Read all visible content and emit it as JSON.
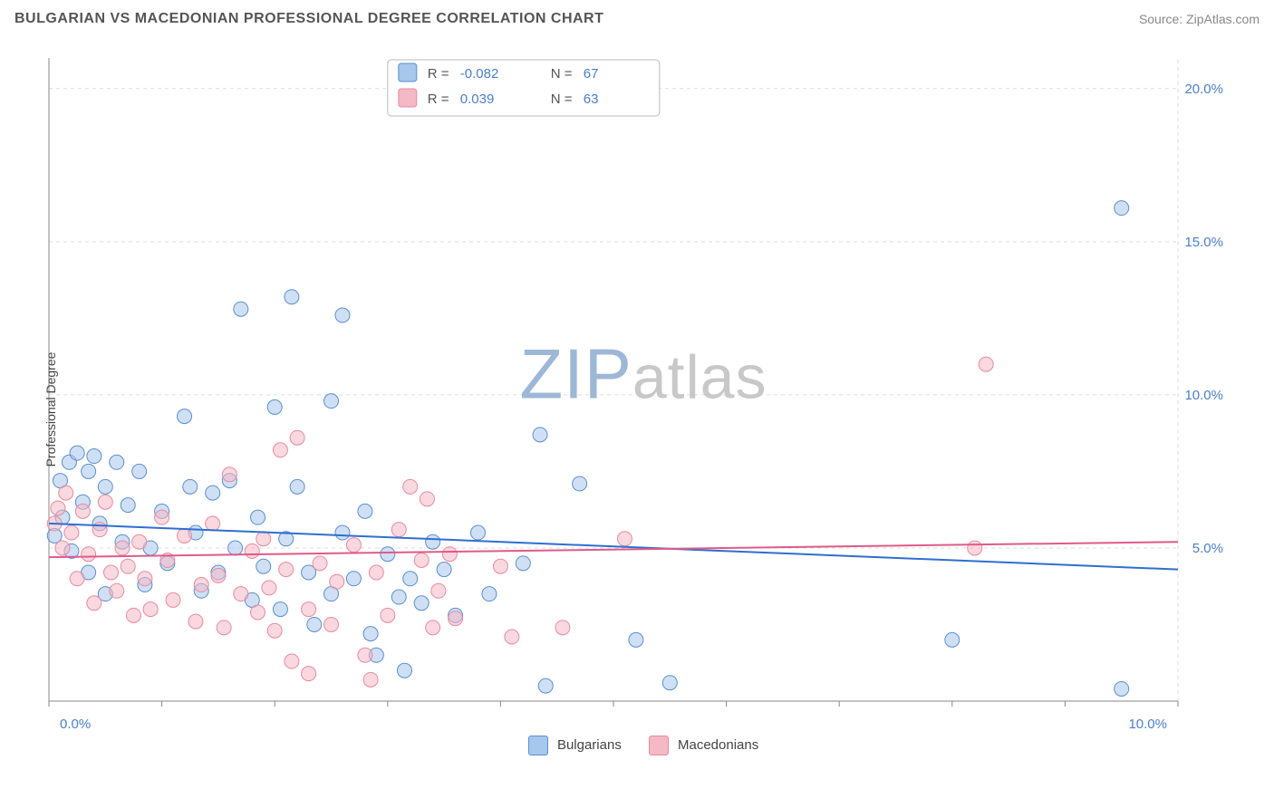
{
  "title": "BULGARIAN VS MACEDONIAN PROFESSIONAL DEGREE CORRELATION CHART",
  "source": "Source: ZipAtlas.com",
  "watermark": {
    "zip": "ZIP",
    "atlas": "atlas"
  },
  "ylabel": "Professional Degree",
  "xlim": [
    0,
    10
  ],
  "ylim": [
    0,
    21
  ],
  "x_ticks": [
    0,
    1,
    2,
    3,
    4,
    5,
    6,
    7,
    8,
    9,
    10
  ],
  "x_tick_labels": {
    "0": "0.0%",
    "10": "10.0%"
  },
  "y_gridlines": [
    5,
    10,
    15,
    20
  ],
  "y_tick_labels": {
    "5": "5.0%",
    "10": "10.0%",
    "15": "15.0%",
    "20": "20.0%"
  },
  "colors": {
    "series1_fill": "#a7c7ec",
    "series1_stroke": "#5a8fd0",
    "series1_line": "#2e6fd0",
    "series2_fill": "#f5b8c5",
    "series2_stroke": "#e88aa0",
    "series2_line": "#e05a8a",
    "grid": "#dddddd",
    "axis": "#888888",
    "tick_text": "#4a7fc8",
    "label_text": "#444444",
    "legend_border": "#bbbbbb",
    "r_label": "#555555"
  },
  "point_radius": 8,
  "point_opacity": 0.55,
  "line_width": 2,
  "legend_top": {
    "items": [
      {
        "swatch": 0,
        "r_label": "R =",
        "r_value": "-0.082",
        "n_label": "N =",
        "n_value": "67"
      },
      {
        "swatch": 1,
        "r_label": "R =",
        "r_value": "0.039",
        "n_label": "N =",
        "n_value": "63"
      }
    ]
  },
  "legend_bottom": [
    {
      "swatch": 0,
      "label": "Bulgarians"
    },
    {
      "swatch": 1,
      "label": "Macedonians"
    }
  ],
  "series": [
    {
      "name": "Bulgarians",
      "color_idx": 0,
      "trend": {
        "y_at_x0": 5.8,
        "y_at_xmax": 4.3
      },
      "points": [
        [
          0.05,
          5.4
        ],
        [
          0.1,
          7.2
        ],
        [
          0.12,
          6.0
        ],
        [
          0.18,
          7.8
        ],
        [
          0.2,
          4.9
        ],
        [
          0.25,
          8.1
        ],
        [
          0.3,
          6.5
        ],
        [
          0.35,
          7.5
        ],
        [
          0.35,
          4.2
        ],
        [
          0.4,
          8.0
        ],
        [
          0.45,
          5.8
        ],
        [
          0.5,
          7.0
        ],
        [
          0.5,
          3.5
        ],
        [
          0.6,
          7.8
        ],
        [
          0.65,
          5.2
        ],
        [
          0.7,
          6.4
        ],
        [
          0.8,
          7.5
        ],
        [
          0.85,
          3.8
        ],
        [
          0.9,
          5.0
        ],
        [
          1.0,
          6.2
        ],
        [
          1.05,
          4.5
        ],
        [
          1.2,
          9.3
        ],
        [
          1.25,
          7.0
        ],
        [
          1.3,
          5.5
        ],
        [
          1.35,
          3.6
        ],
        [
          1.45,
          6.8
        ],
        [
          1.5,
          4.2
        ],
        [
          1.6,
          7.2
        ],
        [
          1.65,
          5.0
        ],
        [
          1.7,
          12.8
        ],
        [
          1.8,
          3.3
        ],
        [
          1.85,
          6.0
        ],
        [
          1.9,
          4.4
        ],
        [
          2.0,
          9.6
        ],
        [
          2.05,
          3.0
        ],
        [
          2.1,
          5.3
        ],
        [
          2.15,
          13.2
        ],
        [
          2.2,
          7.0
        ],
        [
          2.3,
          4.2
        ],
        [
          2.35,
          2.5
        ],
        [
          2.5,
          9.8
        ],
        [
          2.5,
          3.5
        ],
        [
          2.6,
          5.5
        ],
        [
          2.6,
          12.6
        ],
        [
          2.7,
          4.0
        ],
        [
          2.8,
          6.2
        ],
        [
          2.85,
          2.2
        ],
        [
          2.9,
          1.5
        ],
        [
          3.0,
          4.8
        ],
        [
          3.1,
          3.4
        ],
        [
          3.15,
          1.0
        ],
        [
          3.2,
          4.0
        ],
        [
          3.3,
          3.2
        ],
        [
          3.4,
          5.2
        ],
        [
          3.5,
          4.3
        ],
        [
          3.6,
          2.8
        ],
        [
          3.8,
          5.5
        ],
        [
          3.9,
          3.5
        ],
        [
          4.2,
          4.5
        ],
        [
          4.35,
          8.7
        ],
        [
          4.4,
          0.5
        ],
        [
          4.7,
          7.1
        ],
        [
          5.2,
          2.0
        ],
        [
          5.5,
          0.6
        ],
        [
          8.0,
          2.0
        ],
        [
          9.5,
          16.1
        ],
        [
          9.5,
          0.4
        ]
      ]
    },
    {
      "name": "Macedonians",
      "color_idx": 1,
      "trend": {
        "y_at_x0": 4.7,
        "y_at_xmax": 5.2
      },
      "points": [
        [
          0.05,
          5.8
        ],
        [
          0.08,
          6.3
        ],
        [
          0.12,
          5.0
        ],
        [
          0.15,
          6.8
        ],
        [
          0.2,
          5.5
        ],
        [
          0.25,
          4.0
        ],
        [
          0.3,
          6.2
        ],
        [
          0.35,
          4.8
        ],
        [
          0.4,
          3.2
        ],
        [
          0.45,
          5.6
        ],
        [
          0.5,
          6.5
        ],
        [
          0.55,
          4.2
        ],
        [
          0.6,
          3.6
        ],
        [
          0.65,
          5.0
        ],
        [
          0.7,
          4.4
        ],
        [
          0.75,
          2.8
        ],
        [
          0.8,
          5.2
        ],
        [
          0.85,
          4.0
        ],
        [
          0.9,
          3.0
        ],
        [
          1.0,
          6.0
        ],
        [
          1.05,
          4.6
        ],
        [
          1.1,
          3.3
        ],
        [
          1.2,
          5.4
        ],
        [
          1.3,
          2.6
        ],
        [
          1.35,
          3.8
        ],
        [
          1.45,
          5.8
        ],
        [
          1.5,
          4.1
        ],
        [
          1.55,
          2.4
        ],
        [
          1.6,
          7.4
        ],
        [
          1.7,
          3.5
        ],
        [
          1.8,
          4.9
        ],
        [
          1.85,
          2.9
        ],
        [
          1.9,
          5.3
        ],
        [
          1.95,
          3.7
        ],
        [
          2.0,
          2.3
        ],
        [
          2.05,
          8.2
        ],
        [
          2.1,
          4.3
        ],
        [
          2.15,
          1.3
        ],
        [
          2.2,
          8.6
        ],
        [
          2.3,
          3.0
        ],
        [
          2.3,
          0.9
        ],
        [
          2.4,
          4.5
        ],
        [
          2.5,
          2.5
        ],
        [
          2.55,
          3.9
        ],
        [
          2.7,
          5.1
        ],
        [
          2.8,
          1.5
        ],
        [
          2.85,
          0.7
        ],
        [
          2.9,
          4.2
        ],
        [
          3.0,
          2.8
        ],
        [
          3.1,
          5.6
        ],
        [
          3.2,
          7.0
        ],
        [
          3.3,
          4.6
        ],
        [
          3.35,
          6.6
        ],
        [
          3.4,
          2.4
        ],
        [
          3.45,
          3.6
        ],
        [
          3.55,
          4.8
        ],
        [
          3.6,
          2.7
        ],
        [
          4.0,
          4.4
        ],
        [
          4.1,
          2.1
        ],
        [
          4.55,
          2.4
        ],
        [
          5.1,
          5.3
        ],
        [
          8.2,
          5.0
        ],
        [
          8.3,
          11.0
        ]
      ]
    }
  ]
}
